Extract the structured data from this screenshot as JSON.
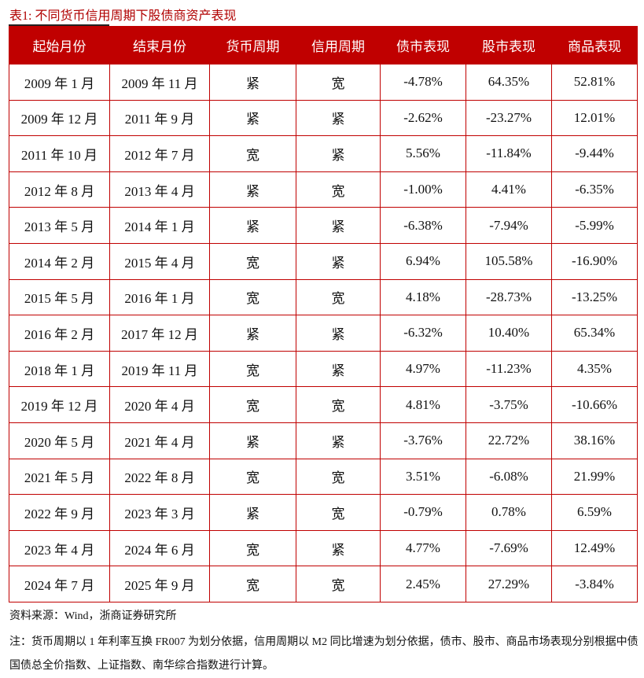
{
  "title": "表1:  不同货币信用周期下股债商资产表现",
  "headers": [
    "起始月份",
    "结束月份",
    "货币周期",
    "信用周期",
    "债市表现",
    "股市表现",
    "商品表现"
  ],
  "rows": [
    [
      "2009 年 1 月",
      "2009 年 11 月",
      "紧",
      "宽",
      "-4.78%",
      "64.35%",
      "52.81%"
    ],
    [
      "2009 年 12 月",
      "2011 年 9 月",
      "紧",
      "紧",
      "-2.62%",
      "-23.27%",
      "12.01%"
    ],
    [
      "2011 年 10 月",
      "2012 年 7 月",
      "宽",
      "紧",
      "5.56%",
      "-11.84%",
      "-9.44%"
    ],
    [
      "2012 年 8 月",
      "2013 年 4 月",
      "紧",
      "宽",
      "-1.00%",
      "4.41%",
      "-6.35%"
    ],
    [
      "2013 年 5 月",
      "2014 年 1 月",
      "紧",
      "紧",
      "-6.38%",
      "-7.94%",
      "-5.99%"
    ],
    [
      "2014 年 2 月",
      "2015 年 4 月",
      "宽",
      "紧",
      "6.94%",
      "105.58%",
      "-16.90%"
    ],
    [
      "2015 年 5 月",
      "2016 年 1 月",
      "宽",
      "宽",
      "4.18%",
      "-28.73%",
      "-13.25%"
    ],
    [
      "2016 年 2 月",
      "2017 年 12 月",
      "紧",
      "紧",
      "-6.32%",
      "10.40%",
      "65.34%"
    ],
    [
      "2018 年 1 月",
      "2019 年 11 月",
      "宽",
      "紧",
      "4.97%",
      "-11.23%",
      "4.35%"
    ],
    [
      "2019 年 12 月",
      "2020 年 4 月",
      "宽",
      "宽",
      "4.81%",
      "-3.75%",
      "-10.66%"
    ],
    [
      "2020 年 5 月",
      "2021 年 4 月",
      "紧",
      "紧",
      "-3.76%",
      "22.72%",
      "38.16%"
    ],
    [
      "2021 年 5 月",
      "2022 年 8 月",
      "宽",
      "宽",
      "3.51%",
      "-6.08%",
      "21.99%"
    ],
    [
      "2022 年 9 月",
      "2023 年 3 月",
      "紧",
      "宽",
      "-0.79%",
      "0.78%",
      "6.59%"
    ],
    [
      "2023 年 4 月",
      "2024 年 6 月",
      "宽",
      "紧",
      "4.77%",
      "-7.69%",
      "12.49%"
    ],
    [
      "2024 年 7 月",
      "2025 年 9 月",
      "宽",
      "宽",
      "2.45%",
      "27.29%",
      "-3.84%"
    ]
  ],
  "source": "资料来源：Wind，浙商证券研究所",
  "note": "注：货币周期以 1 年利率互换 FR007 为划分依据，信用周期以 M2 同比增速为划分依据，债市、股市、商品市场表现分别根据中债国债总全价指数、上证指数、南华综合指数进行计算。"
}
